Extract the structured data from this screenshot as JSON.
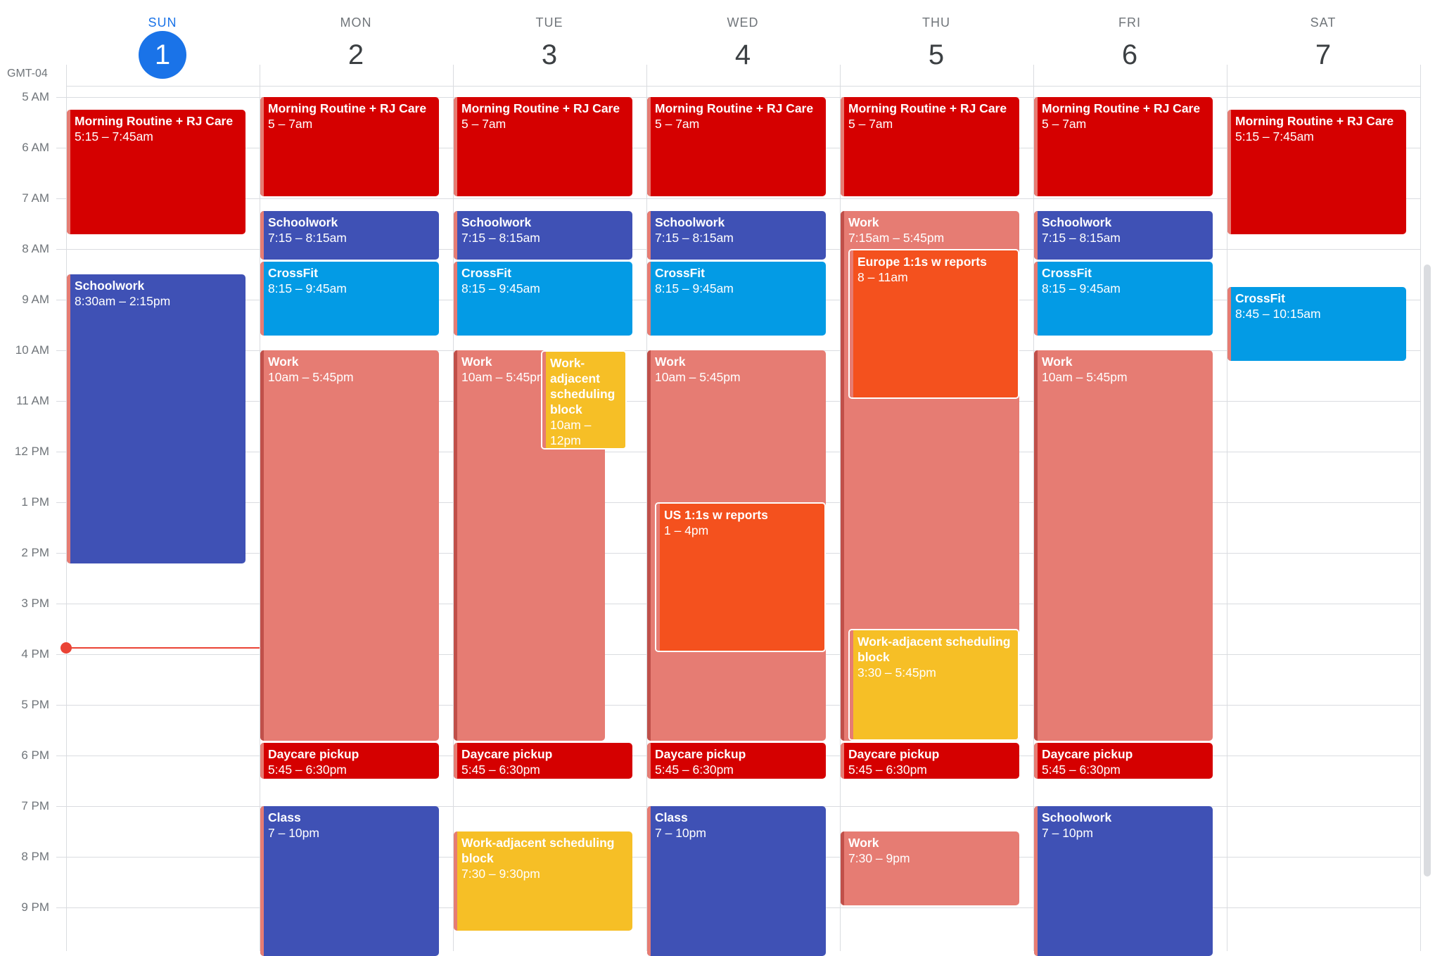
{
  "timezone": "GMT-04",
  "days": [
    {
      "name": "SUN",
      "date": "1",
      "today": true
    },
    {
      "name": "MON",
      "date": "2"
    },
    {
      "name": "TUE",
      "date": "3"
    },
    {
      "name": "WED",
      "date": "4"
    },
    {
      "name": "THU",
      "date": "5"
    },
    {
      "name": "FRI",
      "date": "6"
    },
    {
      "name": "SAT",
      "date": "7"
    }
  ],
  "hours": [
    "5 AM",
    "6 AM",
    "7 AM",
    "8 AM",
    "9 AM",
    "10 AM",
    "11 AM",
    "12 PM",
    "1 PM",
    "2 PM",
    "3 PM",
    "4 PM",
    "5 PM",
    "6 PM",
    "7 PM",
    "8 PM",
    "9 PM"
  ],
  "now_time": "4:00 PM",
  "colors": {
    "tomato": "#d50000",
    "blueberry": "#3f51b5",
    "peacock": "#039be5",
    "flamingo": "#e67c73",
    "tangerine": "#f4511e",
    "banana": "#f6bf26",
    "today_accent": "#1a73e8",
    "now_line": "#ea4335"
  },
  "events": [
    {
      "day": 0,
      "title": "Morning Routine + RJ Care",
      "time": "5:15 – 7:45am",
      "start": 5.25,
      "end": 7.75,
      "color": "tomato"
    },
    {
      "day": 0,
      "title": "Schoolwork",
      "time": "8:30am – 2:15pm",
      "start": 8.5,
      "end": 14.25,
      "color": "blueberry"
    },
    {
      "day": 1,
      "title": "Morning Routine + RJ Care",
      "time": "5 – 7am",
      "start": 5,
      "end": 7,
      "color": "tomato"
    },
    {
      "day": 1,
      "title": "Schoolwork",
      "time": "7:15 – 8:15am",
      "start": 7.25,
      "end": 8.25,
      "color": "blueberry"
    },
    {
      "day": 1,
      "title": "CrossFit",
      "time": "8:15 – 9:45am",
      "start": 8.25,
      "end": 9.75,
      "color": "peacock"
    },
    {
      "day": 1,
      "title": "Work",
      "time": "10am – 5:45pm",
      "start": 10,
      "end": 17.75,
      "color": "flamingo"
    },
    {
      "day": 1,
      "title": "Daycare pickup",
      "time": "5:45 – 6:30pm",
      "start": 17.75,
      "end": 18.5,
      "color": "tomato"
    },
    {
      "day": 1,
      "title": "Class",
      "time": "7 – 10pm",
      "start": 19,
      "end": 22,
      "color": "blueberry"
    },
    {
      "day": 2,
      "title": "Morning Routine + RJ Care",
      "time": "5 – 7am",
      "start": 5,
      "end": 7,
      "color": "tomato"
    },
    {
      "day": 2,
      "title": "Schoolwork",
      "time": "7:15 – 8:15am",
      "start": 7.25,
      "end": 8.25,
      "color": "blueberry"
    },
    {
      "day": 2,
      "title": "CrossFit",
      "time": "8:15 – 9:45am",
      "start": 8.25,
      "end": 9.75,
      "color": "peacock"
    },
    {
      "day": 2,
      "title": "Work",
      "time": "10am – 5:45pm",
      "start": 10,
      "end": 17.75,
      "color": "flamingo",
      "narrow": true
    },
    {
      "day": 2,
      "title": "Work-adjacent scheduling block",
      "time": "10am – 12pm",
      "start": 10,
      "end": 12,
      "color": "banana",
      "overlay": true
    },
    {
      "day": 2,
      "title": "Daycare pickup",
      "time": "5:45 – 6:30pm",
      "start": 17.75,
      "end": 18.5,
      "color": "tomato"
    },
    {
      "day": 2,
      "title": "Work-adjacent scheduling block",
      "time": "7:30 – 9:30pm",
      "start": 19.5,
      "end": 21.5,
      "color": "banana"
    },
    {
      "day": 3,
      "title": "Morning Routine + RJ Care",
      "time": "5 – 7am",
      "start": 5,
      "end": 7,
      "color": "tomato"
    },
    {
      "day": 3,
      "title": "Schoolwork",
      "time": "7:15 – 8:15am",
      "start": 7.25,
      "end": 8.25,
      "color": "blueberry"
    },
    {
      "day": 3,
      "title": "CrossFit",
      "time": "8:15 – 9:45am",
      "start": 8.25,
      "end": 9.75,
      "color": "peacock"
    },
    {
      "day": 3,
      "title": "Work",
      "time": "10am – 5:45pm",
      "start": 10,
      "end": 17.75,
      "color": "flamingo"
    },
    {
      "day": 3,
      "title": "US 1:1s w reports",
      "time": "1 – 4pm",
      "start": 13,
      "end": 16,
      "color": "tangerine",
      "inset": true
    },
    {
      "day": 3,
      "title": "Daycare pickup",
      "time": "5:45 – 6:30pm",
      "start": 17.75,
      "end": 18.5,
      "color": "tomato"
    },
    {
      "day": 3,
      "title": "Class",
      "time": "7 – 10pm",
      "start": 19,
      "end": 22,
      "color": "blueberry"
    },
    {
      "day": 4,
      "title": "Morning Routine + RJ Care",
      "time": "5 – 7am",
      "start": 5,
      "end": 7,
      "color": "tomato"
    },
    {
      "day": 4,
      "title": "Work",
      "time": "7:15am – 5:45pm",
      "start": 7.25,
      "end": 17.75,
      "color": "flamingo"
    },
    {
      "day": 4,
      "title": "Europe 1:1s w reports",
      "time": "8 – 11am",
      "start": 8,
      "end": 11,
      "color": "tangerine",
      "inset": true
    },
    {
      "day": 4,
      "title": "Work-adjacent scheduling block",
      "time": "3:30 – 5:45pm",
      "start": 15.5,
      "end": 17.75,
      "color": "banana",
      "inset": true
    },
    {
      "day": 4,
      "title": "Daycare pickup",
      "time": "5:45 – 6:30pm",
      "start": 17.75,
      "end": 18.5,
      "color": "tomato"
    },
    {
      "day": 4,
      "title": "Work",
      "time": "7:30 – 9pm",
      "start": 19.5,
      "end": 21,
      "color": "flamingo"
    },
    {
      "day": 5,
      "title": "Morning Routine + RJ Care",
      "time": "5 – 7am",
      "start": 5,
      "end": 7,
      "color": "tomato"
    },
    {
      "day": 5,
      "title": "Schoolwork",
      "time": "7:15 – 8:15am",
      "start": 7.25,
      "end": 8.25,
      "color": "blueberry"
    },
    {
      "day": 5,
      "title": "CrossFit",
      "time": "8:15 – 9:45am",
      "start": 8.25,
      "end": 9.75,
      "color": "peacock"
    },
    {
      "day": 5,
      "title": "Work",
      "time": "10am – 5:45pm",
      "start": 10,
      "end": 17.75,
      "color": "flamingo"
    },
    {
      "day": 5,
      "title": "Daycare pickup",
      "time": "5:45 – 6:30pm",
      "start": 17.75,
      "end": 18.5,
      "color": "tomato"
    },
    {
      "day": 5,
      "title": "Schoolwork",
      "time": "7 – 10pm",
      "start": 19,
      "end": 22,
      "color": "blueberry"
    },
    {
      "day": 6,
      "title": "Morning Routine + RJ Care",
      "time": "5:15 – 7:45am",
      "start": 5.25,
      "end": 7.75,
      "color": "tomato"
    },
    {
      "day": 6,
      "title": "CrossFit",
      "time": "8:45 – 10:15am",
      "start": 8.75,
      "end": 10.25,
      "color": "peacock"
    }
  ]
}
